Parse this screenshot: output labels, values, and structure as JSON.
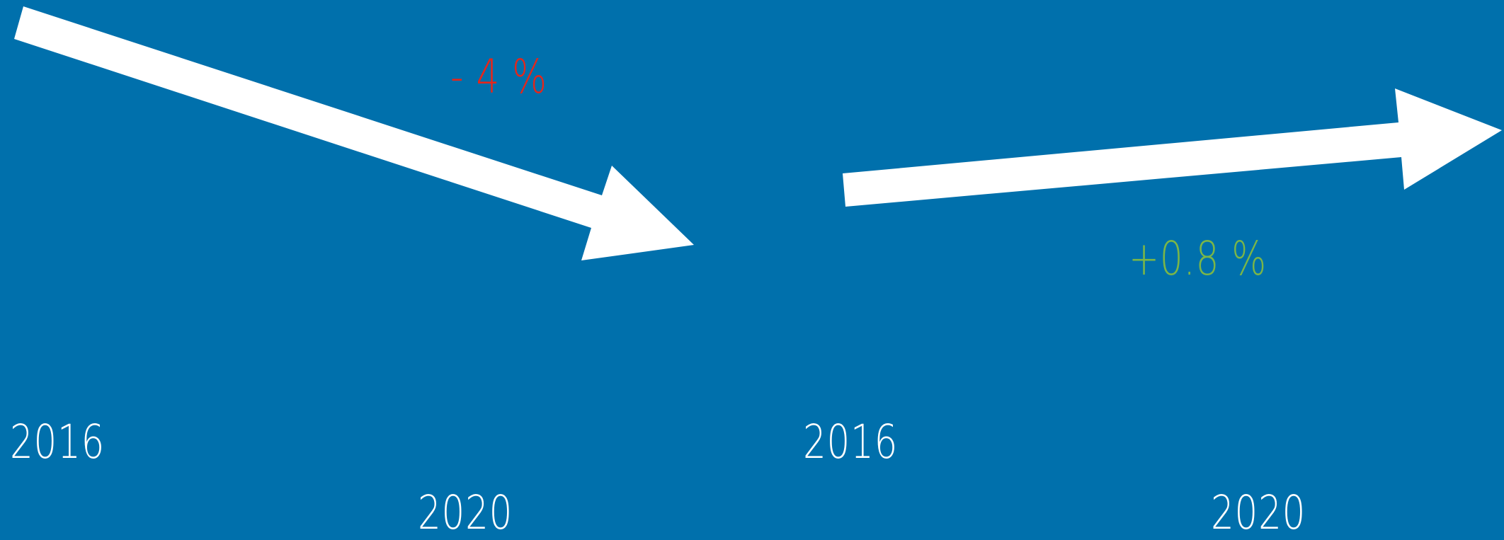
{
  "panels": [
    {
      "change_label": "- 4 %",
      "change_color": "#E5261B",
      "trend": "down",
      "start_year": "2016",
      "end_year": "2020"
    },
    {
      "change_label": "+0.8 %",
      "change_color": "#7AB648",
      "trend": "up",
      "start_year": "2016",
      "end_year": "2020"
    }
  ],
  "colors": {
    "background": "#0070AC",
    "arrow": "#FFFFFF",
    "year_text": "#FFFFFF"
  }
}
